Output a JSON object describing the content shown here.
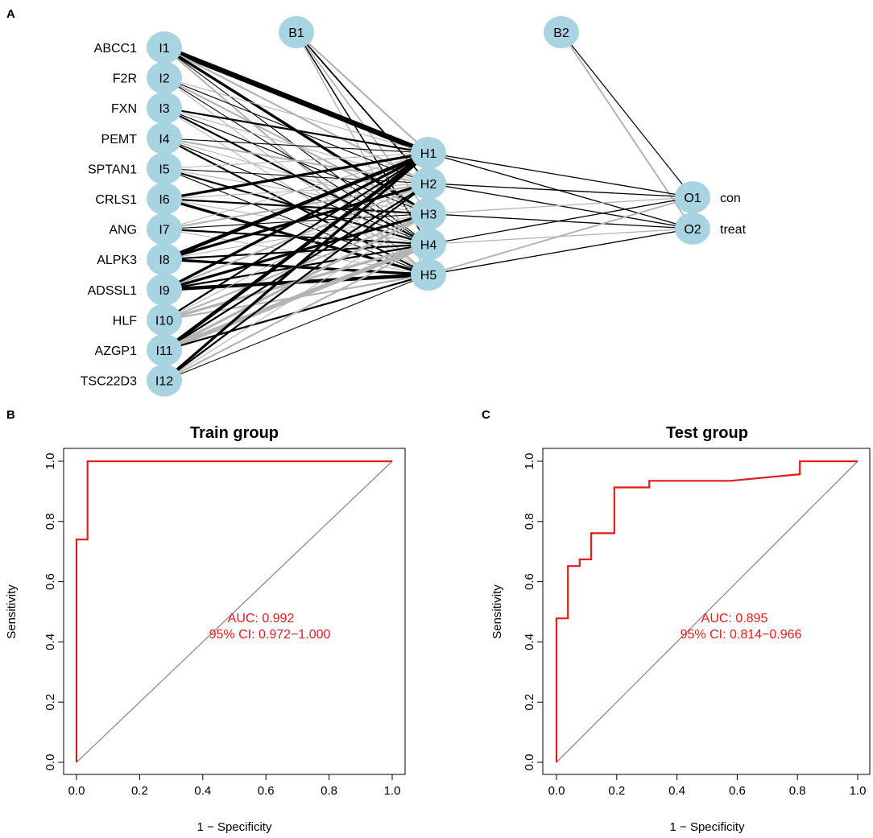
{
  "colors": {
    "node_fill": "#a8d4e1",
    "edge_positive": "#000000",
    "edge_negative": "#b4b4b4",
    "roc_line": "#e41a1c",
    "diagonal": "#8c8c8c"
  },
  "panel_labels": {
    "a": "A",
    "b": "B",
    "c": "C"
  },
  "network": {
    "inputs": [
      {
        "id": "I1",
        "gene": "ABCC1"
      },
      {
        "id": "I2",
        "gene": "F2R"
      },
      {
        "id": "I3",
        "gene": "FXN"
      },
      {
        "id": "I4",
        "gene": "PEMT"
      },
      {
        "id": "I5",
        "gene": "SPTAN1"
      },
      {
        "id": "I6",
        "gene": "CRLS1"
      },
      {
        "id": "I7",
        "gene": "ANG"
      },
      {
        "id": "I8",
        "gene": "ALPK3"
      },
      {
        "id": "I9",
        "gene": "ADSSL1"
      },
      {
        "id": "I10",
        "gene": "HLF"
      },
      {
        "id": "I11",
        "gene": "AZGP1"
      },
      {
        "id": "I12",
        "gene": "TSC22D3"
      }
    ],
    "hidden": [
      "H1",
      "H2",
      "H3",
      "H4",
      "H5"
    ],
    "bias": [
      "B1",
      "B2"
    ],
    "outputs": [
      {
        "id": "O1",
        "label": "con"
      },
      {
        "id": "O2",
        "label": "treat"
      }
    ]
  },
  "chart_data": [
    {
      "type": "line",
      "title": "Train group",
      "xlabel": "1 − Specificity",
      "ylabel": "Sensitivity",
      "xlim": [
        0,
        1
      ],
      "ylim": [
        0,
        1
      ],
      "xticks": [
        "0.0",
        "0.2",
        "0.4",
        "0.6",
        "0.8",
        "1.0"
      ],
      "yticks": [
        "0.0",
        "0.2",
        "0.4",
        "0.6",
        "0.8",
        "1.0"
      ],
      "series": [
        {
          "name": "ROC",
          "x": [
            0,
            0,
            0.035,
            0.035,
            1.0
          ],
          "y": [
            0,
            0.74,
            0.74,
            1.0,
            1.0
          ]
        },
        {
          "name": "reference",
          "x": [
            0,
            1
          ],
          "y": [
            0,
            1
          ]
        }
      ],
      "annotation": {
        "auc": "AUC: 0.992",
        "ci": "95% CI: 0.972−1.000"
      }
    },
    {
      "type": "line",
      "title": "Test group",
      "xlabel": "1 − Specificity",
      "ylabel": "Sensitivity",
      "xlim": [
        0,
        1
      ],
      "ylim": [
        0,
        1
      ],
      "xticks": [
        "0.0",
        "0.2",
        "0.4",
        "0.6",
        "0.8",
        "1.0"
      ],
      "yticks": [
        "0.0",
        "0.2",
        "0.4",
        "0.6",
        "0.8",
        "1.0"
      ],
      "series": [
        {
          "name": "ROC",
          "x": [
            0,
            0,
            0.038,
            0.038,
            0.077,
            0.077,
            0.115,
            0.115,
            0.192,
            0.192,
            0.231,
            0.231,
            0.308,
            0.308,
            0.577,
            0.808,
            0.808,
            1.0
          ],
          "y": [
            0,
            0.478,
            0.478,
            0.652,
            0.652,
            0.674,
            0.674,
            0.761,
            0.761,
            0.913,
            0.913,
            0.913,
            0.913,
            0.935,
            0.935,
            0.957,
            1.0,
            1.0
          ]
        },
        {
          "name": "reference",
          "x": [
            0,
            1
          ],
          "y": [
            0,
            1
          ]
        }
      ],
      "annotation": {
        "auc": "AUC: 0.895",
        "ci": "95% CI: 0.814−0.966"
      }
    }
  ]
}
